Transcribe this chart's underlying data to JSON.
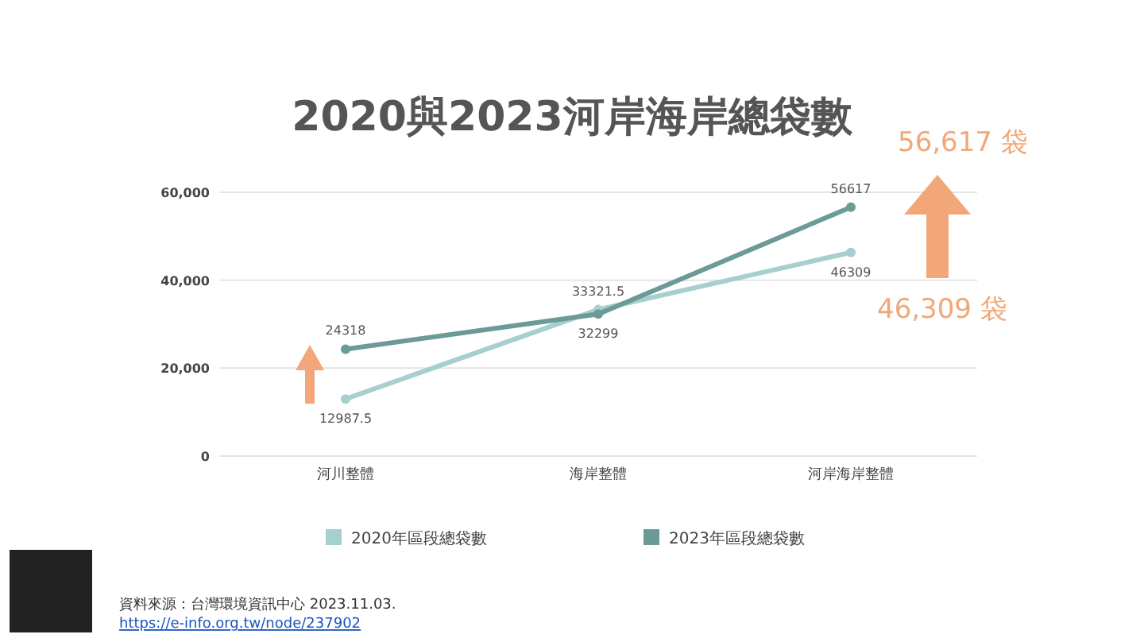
{
  "chart_data": {
    "type": "line",
    "title": "2020與2023河岸海岸總袋數",
    "categories": [
      "河川整體",
      "海岸整體",
      "河岸海岸整體"
    ],
    "series": [
      {
        "name": "2020年區段總袋數",
        "color": "#a6d0cd",
        "values": [
          12987.5,
          33321.5,
          46309
        ]
      },
      {
        "name": "2023年區段總袋數",
        "color": "#6b9a97",
        "values": [
          24318,
          32299,
          56617
        ]
      }
    ],
    "ylim": [
      0,
      60000
    ],
    "yticks": [
      {
        "value": 0,
        "label": "0"
      },
      {
        "value": 20000,
        "label": "20,000"
      },
      {
        "value": 40000,
        "label": "40,000"
      },
      {
        "value": 60000,
        "label": "60,000"
      }
    ],
    "grid": "y",
    "legend": "bottom",
    "marker": "circle",
    "line_style": "solid",
    "data_labels": true,
    "annotations": [
      "56,617 袋",
      "46,309 袋",
      "資料來源：台灣環境資訊中心 2023.11.03.",
      "https://e-info.org.tw/node/237902"
    ]
  }
}
